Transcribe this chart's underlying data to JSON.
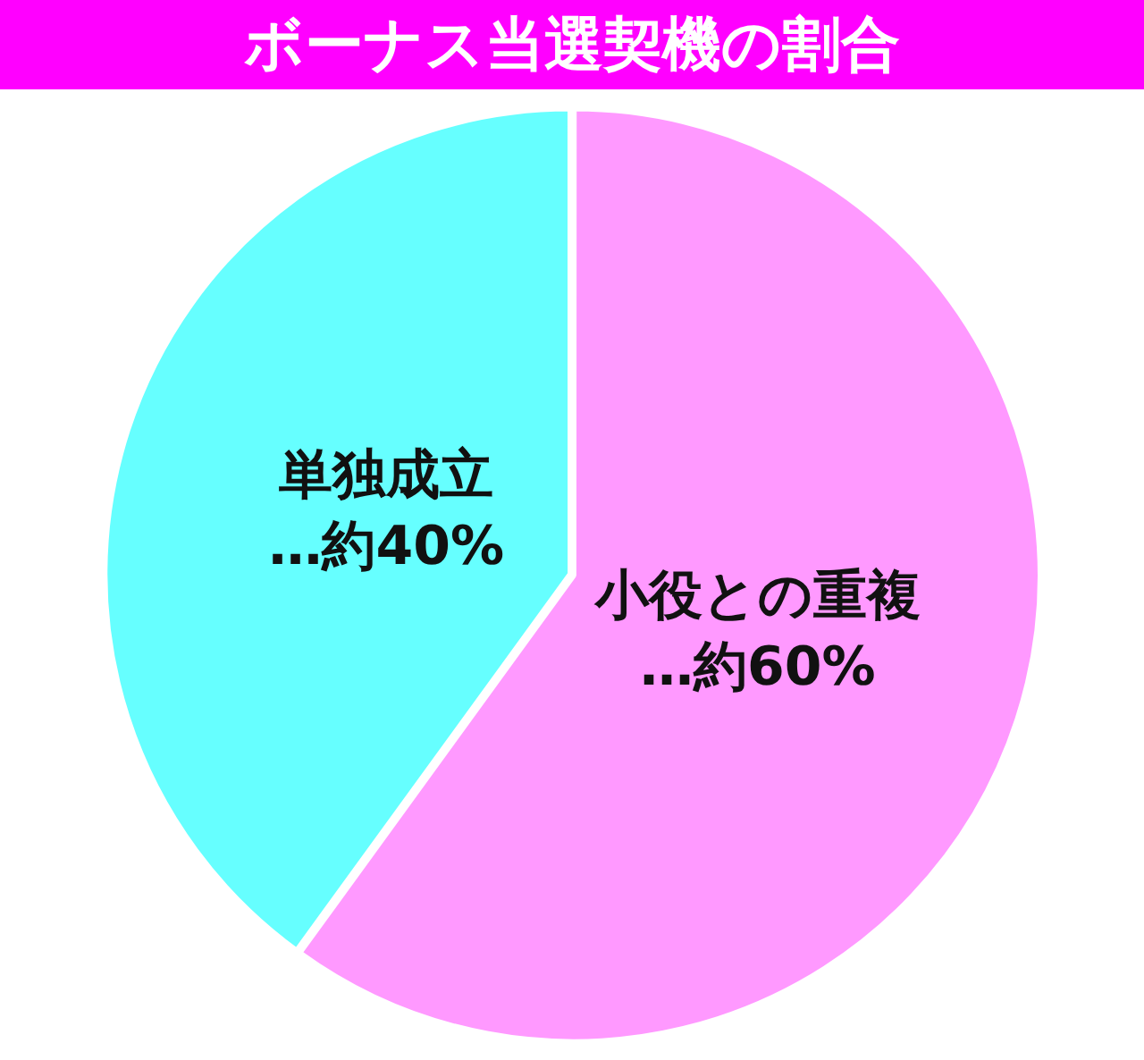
{
  "chart_data": {
    "type": "pie",
    "title": "ボーナス当選契機の割合",
    "categories": [
      "小役との重複",
      "単独成立"
    ],
    "values": [
      60,
      40
    ],
    "value_labels": [
      "…約60%",
      "…約40%"
    ],
    "colors": [
      "#ff99ff",
      "#66ffff"
    ],
    "legend": false
  }
}
